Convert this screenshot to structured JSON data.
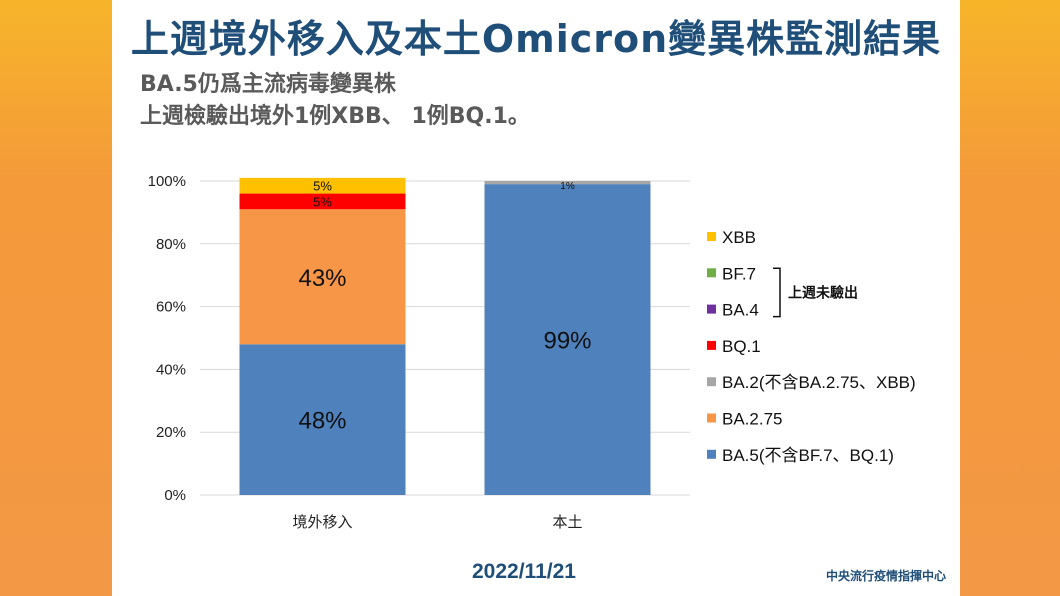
{
  "title": "上週境外移入及本土Omicron變異株監測結果",
  "subtitle_lines": [
    "BA.5仍爲主流病毒變異株",
    "上週檢驗出境外1例XBB、 1例BQ.1。"
  ],
  "date": "2022/11/21",
  "source": "中央流行疫情指揮中心",
  "bracket_label": "上週未驗出",
  "colors": {
    "background": "#f49a3a",
    "title": "#1f4e79"
  },
  "chart_data": {
    "type": "bar",
    "stacked": true,
    "categories": [
      "境外移入",
      "本土"
    ],
    "y_ticks": [
      "0%",
      "20%",
      "40%",
      "60%",
      "80%",
      "100%"
    ],
    "ylim": [
      0,
      100
    ],
    "grid": true,
    "legend_position": "right",
    "series": [
      {
        "name": "BA.5(不含BF.7、BQ.1)",
        "color": "#4f81bd",
        "values": [
          48,
          99
        ],
        "labels": [
          "48%",
          "99%"
        ]
      },
      {
        "name": "BA.2.75",
        "color": "#f79646",
        "values": [
          43,
          0
        ],
        "labels": [
          "43%",
          ""
        ]
      },
      {
        "name": "BA.2(不含BA.2.75、XBB)",
        "color": "#a6a6a6",
        "values": [
          0,
          1
        ],
        "labels": [
          "",
          "1%"
        ]
      },
      {
        "name": "BQ.1",
        "color": "#ff0000",
        "values": [
          5,
          0
        ],
        "labels": [
          "5%",
          ""
        ]
      },
      {
        "name": "BA.4",
        "color": "#7030a0",
        "values": [
          0,
          0
        ],
        "labels": [
          "",
          ""
        ]
      },
      {
        "name": "BF.7",
        "color": "#70ad47",
        "values": [
          0,
          0
        ],
        "labels": [
          "",
          ""
        ]
      },
      {
        "name": "XBB",
        "color": "#ffc000",
        "values": [
          5,
          0
        ],
        "labels": [
          "5%",
          ""
        ]
      }
    ],
    "legend_order": [
      "XBB",
      "BF.7",
      "BA.4",
      "BQ.1",
      "BA.2(不含BA.2.75、XBB)",
      "BA.2.75",
      "BA.5(不含BF.7、BQ.1)"
    ]
  }
}
